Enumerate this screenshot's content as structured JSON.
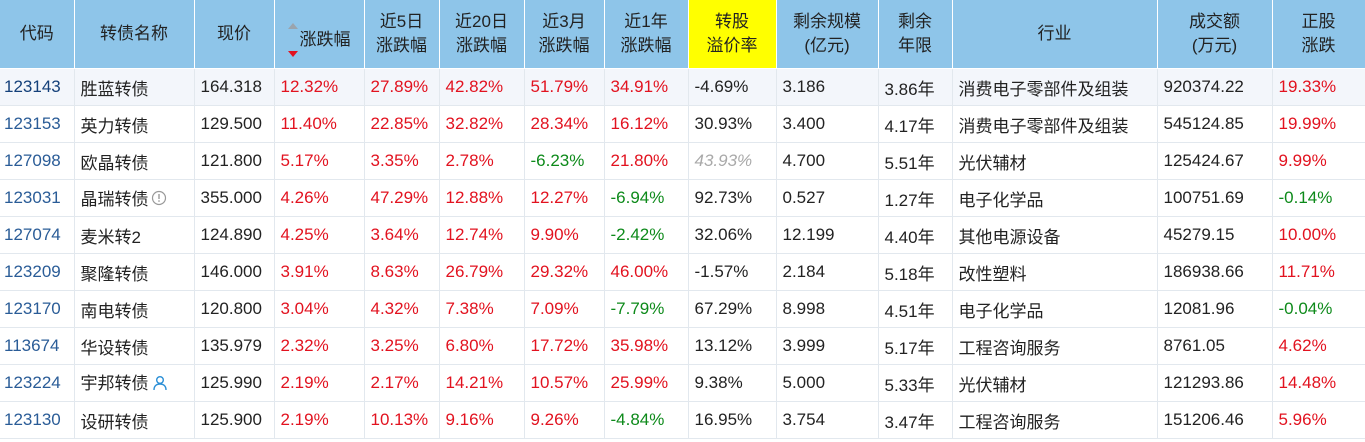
{
  "headers": [
    {
      "key": "code",
      "label": "代码"
    },
    {
      "key": "name",
      "label": "转债名称"
    },
    {
      "key": "price",
      "label": "现价"
    },
    {
      "key": "change",
      "label": "涨跌幅"
    },
    {
      "key": "chg5d",
      "label_line1": "近5日",
      "label_line2": "涨跌幅"
    },
    {
      "key": "chg20d",
      "label_line1": "近20日",
      "label_line2": "涨跌幅"
    },
    {
      "key": "chg3m",
      "label_line1": "近3月",
      "label_line2": "涨跌幅"
    },
    {
      "key": "chg1y",
      "label_line1": "近1年",
      "label_line2": "涨跌幅"
    },
    {
      "key": "premium",
      "label_line1": "转股",
      "label_line2": "溢价率"
    },
    {
      "key": "size",
      "label_line1": "剩余规模",
      "label_line2": "(亿元)"
    },
    {
      "key": "years",
      "label_line1": "剩余",
      "label_line2": "年限"
    },
    {
      "key": "industry",
      "label": "行业"
    },
    {
      "key": "turnover",
      "label_line1": "成交额",
      "label_line2": "(万元)"
    },
    {
      "key": "stockchg",
      "label_line1": "正股",
      "label_line2": "涨跌"
    }
  ],
  "sort": {
    "column": "change",
    "direction": "desc"
  },
  "colors": {
    "header_bg": "#8ec5e9",
    "highlight": "#ffff00",
    "up": "#e2121f",
    "down": "#0d8a1a"
  },
  "rows": [
    {
      "code": "123143",
      "name": "胜蓝转债",
      "price": "164.318",
      "change": "12.32%",
      "chg5d": "27.89%",
      "chg20d": "42.82%",
      "chg3m": "51.79%",
      "chg1y": "34.91%",
      "premium": "-4.69%",
      "size": "3.186",
      "years": "3.86年",
      "industry": "消费电子零部件及组装",
      "turnover": "920374.22",
      "stockchg": "19.33%"
    },
    {
      "code": "123153",
      "name": "英力转债",
      "price": "129.500",
      "change": "11.40%",
      "chg5d": "22.85%",
      "chg20d": "32.82%",
      "chg3m": "28.34%",
      "chg1y": "16.12%",
      "premium": "30.93%",
      "size": "3.400",
      "years": "4.17年",
      "industry": "消费电子零部件及组装",
      "turnover": "545124.85",
      "stockchg": "19.99%"
    },
    {
      "code": "127098",
      "name": "欧晶转债",
      "price": "121.800",
      "change": "5.17%",
      "chg5d": "3.35%",
      "chg20d": "2.78%",
      "chg3m": "-6.23%",
      "chg1y": "21.80%",
      "premium": "43.93%",
      "size": "4.700",
      "years": "5.51年",
      "industry": "光伏辅材",
      "turnover": "125424.67",
      "stockchg": "9.99%"
    },
    {
      "code": "123031",
      "name": "晶瑞转债",
      "price": "355.000",
      "change": "4.26%",
      "chg5d": "47.29%",
      "chg20d": "12.88%",
      "chg3m": "12.27%",
      "chg1y": "-6.94%",
      "premium": "92.73%",
      "size": "0.527",
      "years": "1.27年",
      "industry": "电子化学品",
      "turnover": "100751.69",
      "stockchg": "-0.14%",
      "icon": "info-circle-icon"
    },
    {
      "code": "127074",
      "name": "麦米转2",
      "price": "124.890",
      "change": "4.25%",
      "chg5d": "3.64%",
      "chg20d": "12.74%",
      "chg3m": "9.90%",
      "chg1y": "-2.42%",
      "premium": "32.06%",
      "size": "12.199",
      "years": "4.40年",
      "industry": "其他电源设备",
      "turnover": "45279.15",
      "stockchg": "10.00%"
    },
    {
      "code": "123209",
      "name": "聚隆转债",
      "price": "146.000",
      "change": "3.91%",
      "chg5d": "8.63%",
      "chg20d": "26.79%",
      "chg3m": "29.32%",
      "chg1y": "46.00%",
      "premium": "-1.57%",
      "size": "2.184",
      "years": "5.18年",
      "industry": "改性塑料",
      "turnover": "186938.66",
      "stockchg": "11.71%"
    },
    {
      "code": "123170",
      "name": "南电转债",
      "price": "120.800",
      "change": "3.04%",
      "chg5d": "4.32%",
      "chg20d": "7.38%",
      "chg3m": "7.09%",
      "chg1y": "-7.79%",
      "premium": "67.29%",
      "size": "8.998",
      "years": "4.51年",
      "industry": "电子化学品",
      "turnover": "12081.96",
      "stockchg": "-0.04%"
    },
    {
      "code": "113674",
      "name": "华设转债",
      "price": "135.979",
      "change": "2.32%",
      "chg5d": "3.25%",
      "chg20d": "6.80%",
      "chg3m": "17.72%",
      "chg1y": "35.98%",
      "premium": "13.12%",
      "size": "3.999",
      "years": "5.17年",
      "industry": "工程咨询服务",
      "turnover": "8761.05",
      "stockchg": "4.62%"
    },
    {
      "code": "123224",
      "name": "宇邦转债",
      "price": "125.990",
      "change": "2.19%",
      "chg5d": "2.17%",
      "chg20d": "14.21%",
      "chg3m": "10.57%",
      "chg1y": "25.99%",
      "premium": "9.38%",
      "size": "5.000",
      "years": "5.33年",
      "industry": "光伏辅材",
      "turnover": "121293.86",
      "stockchg": "14.48%",
      "icon": "person-icon"
    },
    {
      "code": "123130",
      "name": "设研转债",
      "price": "125.900",
      "change": "2.19%",
      "chg5d": "10.13%",
      "chg20d": "9.16%",
      "chg3m": "9.26%",
      "chg1y": "-4.84%",
      "premium": "16.95%",
      "size": "3.754",
      "years": "3.47年",
      "industry": "工程咨询服务",
      "turnover": "151206.46",
      "stockchg": "5.96%"
    }
  ]
}
